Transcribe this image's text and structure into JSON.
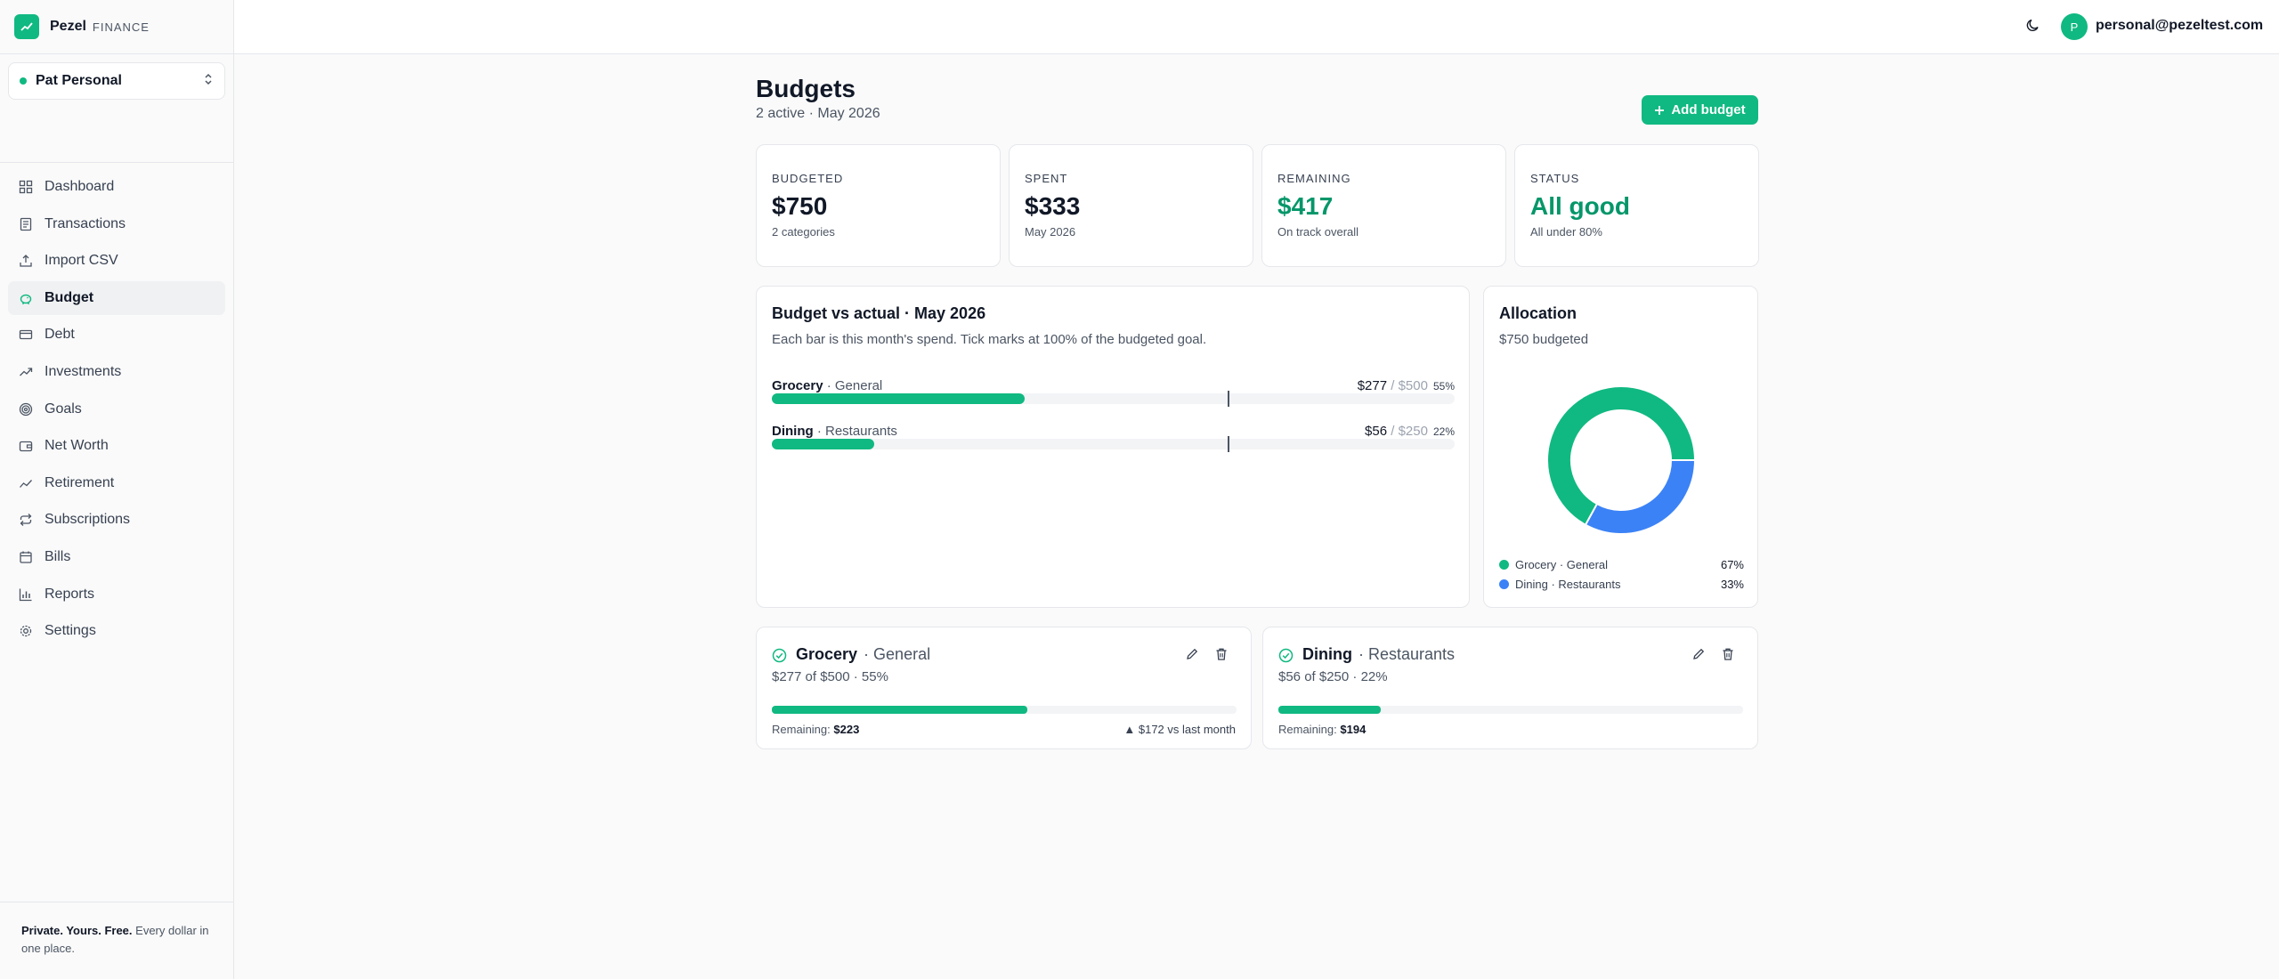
{
  "brand": {
    "name": "Pezel",
    "sub": "FINANCE"
  },
  "profile": {
    "name": "Pat Personal"
  },
  "nav": [
    {
      "label": "Dashboard",
      "icon": "dashboard-icon"
    },
    {
      "label": "Transactions",
      "icon": "receipt-icon"
    },
    {
      "label": "Import CSV",
      "icon": "upload-icon"
    },
    {
      "label": "Budget",
      "icon": "piggy-bank-icon",
      "active": true
    },
    {
      "label": "Debt",
      "icon": "credit-card-icon"
    },
    {
      "label": "Investments",
      "icon": "trending-up-icon"
    },
    {
      "label": "Goals",
      "icon": "target-icon"
    },
    {
      "label": "Net Worth",
      "icon": "wallet-icon"
    },
    {
      "label": "Retirement",
      "icon": "chart-line-icon"
    },
    {
      "label": "Subscriptions",
      "icon": "repeat-icon"
    },
    {
      "label": "Bills",
      "icon": "calendar-icon"
    },
    {
      "label": "Reports",
      "icon": "bar-chart-icon"
    },
    {
      "label": "Settings",
      "icon": "gear-icon"
    }
  ],
  "footer": {
    "bold": "Private. Yours. Free.",
    "text": " Every dollar in one place."
  },
  "topbar": {
    "avatar_letter": "P",
    "email": "personal@pezeltest.com"
  },
  "page": {
    "title": "Budgets",
    "subtitle": "2 active · May 2026",
    "add_label": "Add budget"
  },
  "stats": [
    {
      "label": "BUDGETED",
      "value": "$750",
      "note": "2 categories",
      "green": false
    },
    {
      "label": "SPENT",
      "value": "$333",
      "note": "May 2026",
      "green": false
    },
    {
      "label": "REMAINING",
      "value": "$417",
      "note": "On track overall",
      "green": true
    },
    {
      "label": "STATUS",
      "value": "All good",
      "note": "All under 80%",
      "green": true
    }
  ],
  "bva": {
    "title": "Budget vs actual · May 2026",
    "desc": "Each bar is this month's spend. Tick marks at 100% of the budgeted goal.",
    "rows": [
      {
        "name": "Grocery",
        "sub": " · General",
        "spent": "$277",
        "sep": " / ",
        "budget": "$500",
        "pct": "55%",
        "fill_fraction": 0.37,
        "tick_fraction": 0.667
      },
      {
        "name": "Dining",
        "sub": " · Restaurants",
        "spent": "$56",
        "sep": " / ",
        "budget": "$250",
        "pct": "22%",
        "fill_fraction": 0.15,
        "tick_fraction": 0.667
      }
    ]
  },
  "allocation": {
    "title": "Allocation",
    "sub": "$750 budgeted",
    "items": [
      {
        "label": "Grocery · General",
        "pct": "67%",
        "value": 67,
        "color": "#10b981"
      },
      {
        "label": "Dining · Restaurants",
        "pct": "33%",
        "value": 33,
        "color": "#3b82f6"
      }
    ]
  },
  "budgets": [
    {
      "name": "Grocery",
      "sub": "· General",
      "summary": "$277 of $500 · 55%",
      "remaining_label": "Remaining:",
      "remaining": "$223",
      "trend": "▲ $172 vs last month",
      "progress": 0.55
    },
    {
      "name": "Dining",
      "sub": "· Restaurants",
      "summary": "$56 of $250 · 22%",
      "remaining_label": "Remaining:",
      "remaining": "$194",
      "trend": "",
      "progress": 0.22
    }
  ]
}
